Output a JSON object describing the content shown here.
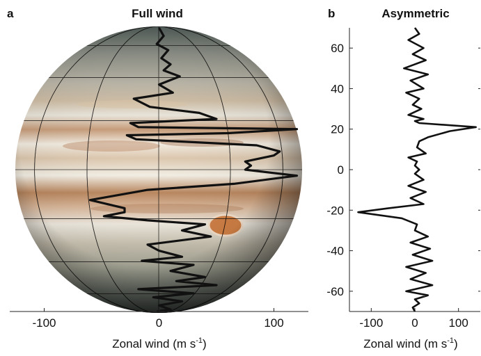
{
  "colors": {
    "axis": "#222222",
    "wind_line": "#111111",
    "globe_bands_light": "#e9e2d4",
    "globe_bands_brown": "#b88a66",
    "great_red_spot": "#cf7f45"
  },
  "chart_data": [
    {
      "type": "line",
      "panel_letter": "a",
      "title": "Full wind",
      "xlabel": "Zonal wind (m s",
      "xlabel_sup": "-1",
      "xlabel_close": ")",
      "xlim": [
        -130,
        130
      ],
      "ylim": [
        -70,
        70
      ],
      "x_ticks": [
        -100,
        0,
        100
      ],
      "x_tick_labels": [
        "-100",
        "0",
        "100"
      ],
      "background_image": "jupiter-globe",
      "series": [
        {
          "x_wind": [
            0,
            4,
            -2,
            8,
            2,
            10,
            4,
            18,
            0,
            12,
            -22,
            -8,
            35,
            50,
            -25,
            -18,
            120,
            60,
            -28,
            -20,
            85,
            105,
            100,
            75,
            80,
            75,
            120,
            65,
            -10,
            -60,
            -30,
            -30,
            -48,
            -10,
            40,
            20,
            45,
            -10,
            0,
            20,
            -15,
            30,
            10,
            40,
            15,
            50,
            -18,
            30,
            -5,
            20,
            0,
            10,
            -2
          ],
          "y": [
            70,
            66,
            62,
            59,
            55,
            52,
            49,
            46,
            42,
            38,
            35,
            31,
            28,
            25,
            23,
            21,
            20,
            18,
            17,
            15,
            12,
            9,
            7,
            4,
            2,
            0,
            -3,
            -7,
            -10,
            -15,
            -19,
            -21,
            -23,
            -25,
            -27,
            -30,
            -33,
            -37,
            -40,
            -43,
            -45,
            -47,
            -50,
            -53,
            -55,
            -57,
            -59,
            -61,
            -63,
            -65,
            -67,
            -69,
            -70
          ]
        }
      ]
    },
    {
      "type": "line",
      "panel_letter": "b",
      "title": "Asymmetric",
      "xlabel": "Zonal wind (m s",
      "xlabel_sup": "-1",
      "xlabel_close": ")",
      "xlim": [
        -150,
        150
      ],
      "ylim": [
        -70,
        70
      ],
      "x_ticks": [
        -100,
        0,
        100
      ],
      "x_tick_labels": [
        "-100",
        "0",
        "100"
      ],
      "y_ticks": [
        60,
        40,
        20,
        0,
        -20,
        -40,
        -60
      ],
      "y_tick_labels": [
        "60",
        "40",
        "20",
        "0",
        "-20",
        "-40",
        "-60"
      ],
      "series": [
        {
          "x": [
            0,
            10,
            -15,
            20,
            -5,
            25,
            -25,
            30,
            -10,
            20,
            -20,
            10,
            -5,
            15,
            -15,
            20,
            0,
            10,
            140,
            80,
            30,
            10,
            5,
            25,
            -15,
            5,
            0,
            10,
            0,
            20,
            -15,
            25,
            -10,
            20,
            -60,
            -130,
            -30,
            5,
            0,
            30,
            -10,
            35,
            -5,
            40,
            -20,
            25,
            -10,
            40,
            -20,
            30,
            0,
            10,
            -5,
            0
          ],
          "y": [
            70,
            67,
            64,
            60,
            57,
            54,
            50,
            47,
            44,
            40,
            38,
            35,
            32,
            30,
            27,
            25,
            24,
            23,
            21,
            19,
            16,
            14,
            11,
            8,
            6,
            4,
            2,
            0,
            -2,
            -5,
            -8,
            -11,
            -14,
            -17,
            -19,
            -21,
            -24,
            -27,
            -30,
            -33,
            -36,
            -39,
            -42,
            -45,
            -48,
            -51,
            -54,
            -57,
            -60,
            -62,
            -64,
            -66,
            -68,
            -70
          ]
        }
      ]
    }
  ]
}
